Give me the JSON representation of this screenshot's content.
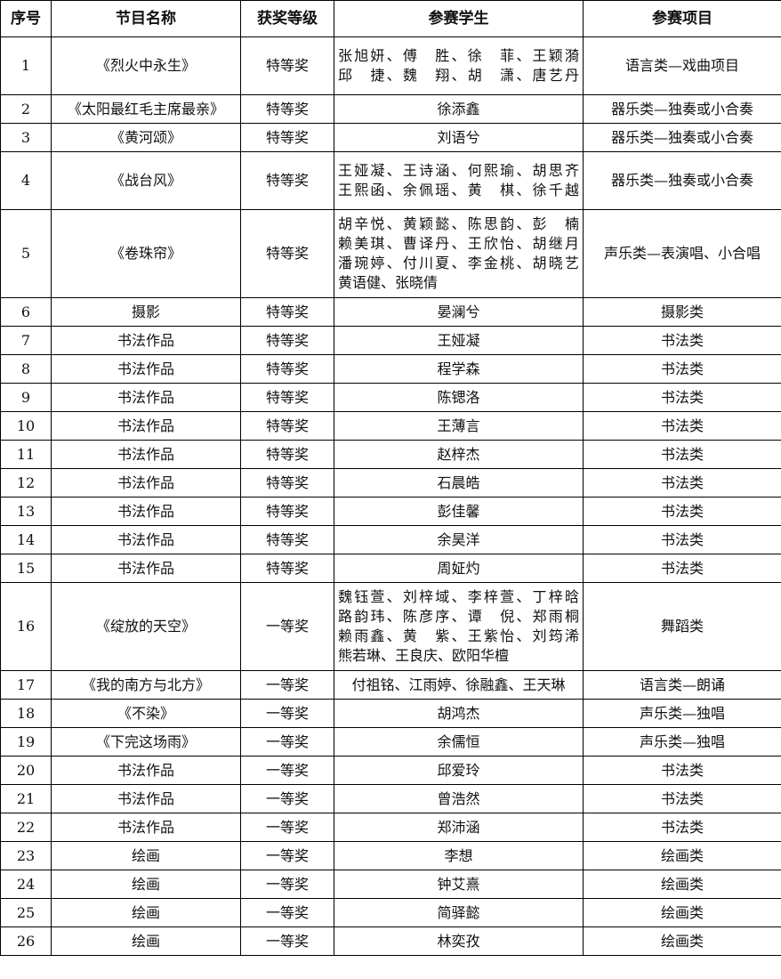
{
  "headers": [
    "序号",
    "节目名称",
    "获奖等级",
    "参赛学生",
    "参赛项目"
  ],
  "rows": [
    {
      "no": "1",
      "name": "《烈火中永生》",
      "award": "特等奖",
      "students": [
        "张旭妍、傅　胜、徐　菲、王颖漪",
        "邱　捷、魏　翔、胡　潇、唐艺丹"
      ],
      "category": "语言类—戏曲项目"
    },
    {
      "no": "2",
      "name": "《太阳最红毛主席最亲》",
      "award": "特等奖",
      "students": [
        "徐添鑫"
      ],
      "category": "器乐类—独奏或小合奏"
    },
    {
      "no": "3",
      "name": "《黄河颂》",
      "award": "特等奖",
      "students": [
        "刘语兮"
      ],
      "category": "器乐类—独奏或小合奏"
    },
    {
      "no": "4",
      "name": "《战台风》",
      "award": "特等奖",
      "students": [
        "王娅凝、王诗涵、何熙瑜、胡思齐",
        "王熙函、余佩瑶、黄　棋、徐千越"
      ],
      "category": "器乐类—独奏或小合奏"
    },
    {
      "no": "5",
      "name": "《卷珠帘》",
      "award": "特等奖",
      "students": [
        "胡辛悦、黄颖懿、陈思韵、彭　楠",
        "赖美琪、曹译丹、王欣怡、胡继月",
        "潘琬婷、付川夏、李金桃、胡晓艺",
        "黄语健、张晓倩"
      ],
      "category": "声乐类—表演唱、小合唱"
    },
    {
      "no": "6",
      "name": "摄影",
      "award": "特等奖",
      "students": [
        "晏澜兮"
      ],
      "category": "摄影类"
    },
    {
      "no": "7",
      "name": "书法作品",
      "award": "特等奖",
      "students": [
        "王娅凝"
      ],
      "category": "书法类"
    },
    {
      "no": "8",
      "name": "书法作品",
      "award": "特等奖",
      "students": [
        "程学森"
      ],
      "category": "书法类"
    },
    {
      "no": "9",
      "name": "书法作品",
      "award": "特等奖",
      "students": [
        "陈锶洛"
      ],
      "category": "书法类"
    },
    {
      "no": "10",
      "name": "书法作品",
      "award": "特等奖",
      "students": [
        "王薄言"
      ],
      "category": "书法类"
    },
    {
      "no": "11",
      "name": "书法作品",
      "award": "特等奖",
      "students": [
        "赵梓杰"
      ],
      "category": "书法类"
    },
    {
      "no": "12",
      "name": "书法作品",
      "award": "特等奖",
      "students": [
        "石晨皓"
      ],
      "category": "书法类"
    },
    {
      "no": "13",
      "name": "书法作品",
      "award": "特等奖",
      "students": [
        "彭佳馨"
      ],
      "category": "书法类"
    },
    {
      "no": "14",
      "name": "书法作品",
      "award": "特等奖",
      "students": [
        "余昊洋"
      ],
      "category": "书法类"
    },
    {
      "no": "15",
      "name": "书法作品",
      "award": "特等奖",
      "students": [
        "周姃灼"
      ],
      "category": "书法类"
    },
    {
      "no": "16",
      "name": "《绽放的天空》",
      "award": "一等奖",
      "students": [
        "魏钰萱、刘梓域、李梓萱、丁梓晗",
        "路韵玮、陈彦序、谭　倪、郑雨桐",
        "赖雨鑫、黄　紫、王紫怡、刘�londemark"
      ],
      "category": "舞蹈类"
    },
    {
      "no": "17",
      "name": "《我的南方与北方》",
      "award": "一等奖",
      "students": [
        "付祖铭、江雨婷、徐融鑫、王天琳"
      ],
      "category": "语言类—朗诵"
    },
    {
      "no": "18",
      "name": "《不染》",
      "award": "一等奖",
      "students": [
        "胡鸿杰"
      ],
      "category": "声乐类—独唱"
    },
    {
      "no": "19",
      "name": "《下完这场雨》",
      "award": "一等奖",
      "students": [
        "余儒恒"
      ],
      "category": "声乐类—独唱"
    },
    {
      "no": "20",
      "name": "书法作品",
      "award": "一等奖",
      "students": [
        "邱爱玲"
      ],
      "category": "书法类"
    },
    {
      "no": "21",
      "name": "书法作品",
      "award": "一等奖",
      "students": [
        "曾浩然"
      ],
      "category": "书法类"
    },
    {
      "no": "22",
      "name": "书法作品",
      "award": "一等奖",
      "students": [
        "郑沛涵"
      ],
      "category": "书法类"
    },
    {
      "no": "23",
      "name": "绘画",
      "award": "一等奖",
      "students": [
        "李想"
      ],
      "category": "绘画类"
    },
    {
      "no": "24",
      "name": "绘画",
      "award": "一等奖",
      "students": [
        "钟艾熹"
      ],
      "category": "绘画类"
    },
    {
      "no": "25",
      "name": "绘画",
      "award": "一等奖",
      "students": [
        "简驿懿"
      ],
      "category": "绘画类"
    },
    {
      "no": "26",
      "name": "绘画",
      "award": "一等奖",
      "students": [
        "林奕孜"
      ],
      "category": "绘画类"
    }
  ]
}
